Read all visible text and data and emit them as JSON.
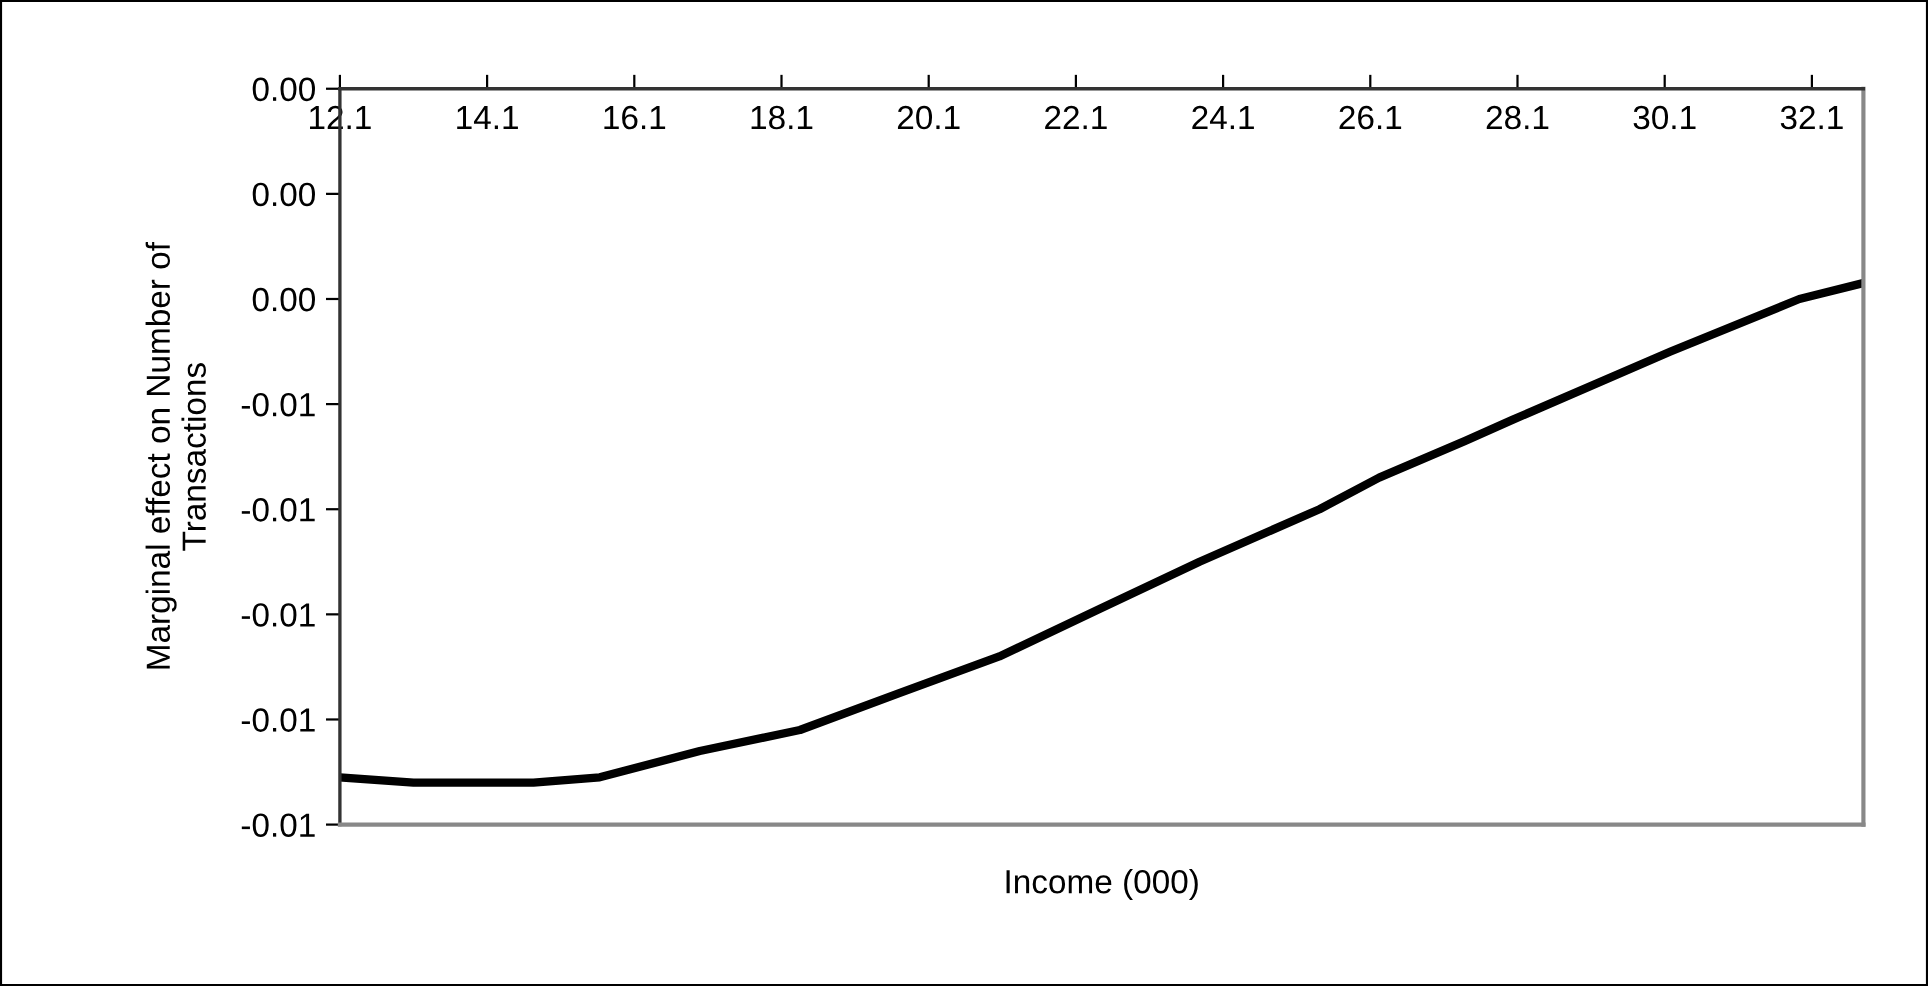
{
  "chart_data": {
    "type": "line",
    "xlabel": "Income (000)",
    "ylabel": "Marginal effect on Number of Transactions",
    "x": [
      12.1,
      13.1,
      14.73,
      15.63,
      16.99,
      18.35,
      19.7,
      21.06,
      22.42,
      23.78,
      25.41,
      26.22,
      27.39,
      28.03,
      30.18,
      31.93,
      32.79
    ],
    "series": [
      {
        "color": "#000000",
        "values": [
          -0.0131,
          -0.0132,
          -0.0132,
          -0.0131,
          -0.0126,
          -0.0122,
          -0.0115,
          -0.0108,
          -0.0099,
          -0.009,
          -0.008,
          -0.0074,
          -0.0067,
          -0.0063,
          -0.005,
          -0.004,
          -0.0037
        ]
      }
    ],
    "xlim": [
      12.1,
      32.8
    ],
    "xticks": [
      12.1,
      14.1,
      16.1,
      18.1,
      20.1,
      22.1,
      24.1,
      26.1,
      28.1,
      30.1,
      32.1
    ],
    "ylim": [
      -0.014,
      0
    ],
    "yticks": [
      {
        "value": 0,
        "label": "0.00"
      },
      {
        "value": -0.002,
        "label": "0.00"
      },
      {
        "value": -0.004,
        "label": "0.00"
      },
      {
        "value": -0.006,
        "label": "-0.01"
      },
      {
        "value": -0.008,
        "label": "-0.01"
      },
      {
        "value": -0.01,
        "label": "-0.01"
      },
      {
        "value": -0.012,
        "label": "-0.01"
      },
      {
        "value": -0.014,
        "label": "-0.01"
      }
    ],
    "grid": false,
    "legend": false,
    "marker": "none",
    "line_style": "solid"
  }
}
